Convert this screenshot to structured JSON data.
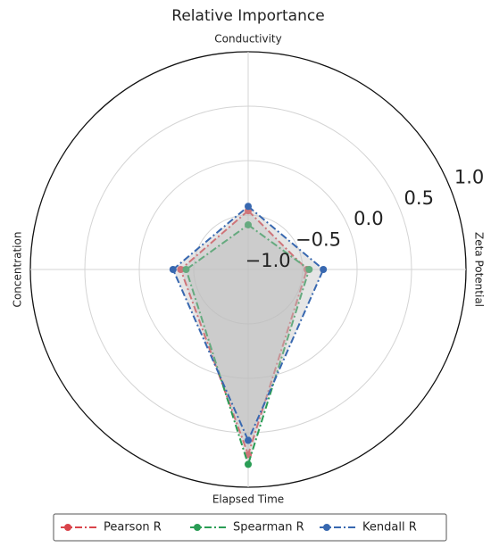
{
  "chart_data": {
    "type": "radar",
    "title": "Relative Importance",
    "categories": [
      "Conductivity",
      "Zeta Potential",
      "Elapsed Time",
      "Concentration"
    ],
    "rlim": [
      -1.0,
      1.0
    ],
    "rticks": [
      {
        "value": -1.0,
        "label": "−1.0"
      },
      {
        "value": -0.5,
        "label": "−0.5"
      },
      {
        "value": 0.0,
        "label": "0.0"
      },
      {
        "value": 0.5,
        "label": "0.5"
      },
      {
        "value": 1.0,
        "label": "1.0"
      }
    ],
    "grid": true,
    "fill_color": "#bfbfbf",
    "legend": "bottom",
    "series": [
      {
        "name": "Pearson R",
        "color": "#d9444b",
        "values": [
          -0.46,
          -0.46,
          0.7,
          -0.38
        ]
      },
      {
        "name": "Spearman R",
        "color": "#2a9d55",
        "values": [
          -0.59,
          -0.44,
          0.79,
          -0.43
        ]
      },
      {
        "name": "Kendall R",
        "color": "#3868b0",
        "values": [
          -0.42,
          -0.31,
          0.57,
          -0.31
        ]
      }
    ]
  }
}
